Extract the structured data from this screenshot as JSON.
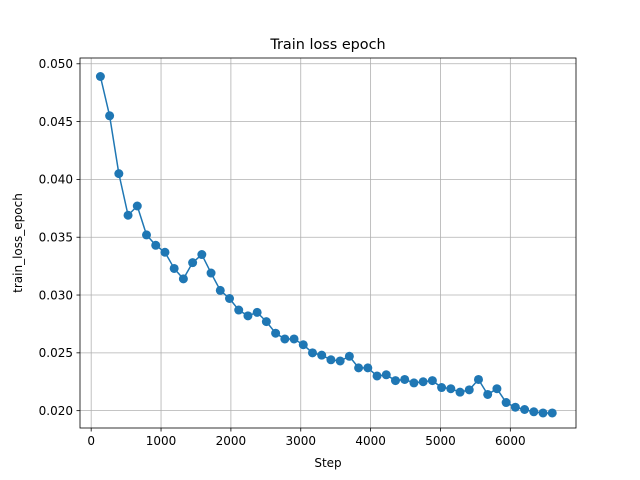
{
  "chart_data": {
    "type": "line",
    "title": "Train loss epoch",
    "xlabel": "Step",
    "ylabel": "train_loss_epoch",
    "xlim": [
      -160,
      6940
    ],
    "ylim": [
      0.0185,
      0.0505
    ],
    "xticks": [
      0,
      1000,
      2000,
      3000,
      4000,
      5000,
      6000
    ],
    "yticks": [
      0.02,
      0.025,
      0.03,
      0.035,
      0.04,
      0.045,
      0.05
    ],
    "ytick_labels": [
      "0.020",
      "0.025",
      "0.030",
      "0.035",
      "0.040",
      "0.045",
      "0.050"
    ],
    "grid": true,
    "color": "#1f77b4",
    "series": [
      {
        "x": [
          132,
          264,
          396,
          528,
          660,
          792,
          924,
          1056,
          1188,
          1320,
          1452,
          1584,
          1716,
          1848,
          1980,
          2112,
          2244,
          2376,
          2508,
          2640,
          2772,
          2904,
          3036,
          3168,
          3300,
          3432,
          3564,
          3696,
          3828,
          3960,
          4092,
          4224,
          4356,
          4488,
          4620,
          4752,
          4884,
          5016,
          5148,
          5280,
          5412,
          5544,
          5676,
          5808,
          5940,
          6072,
          6204,
          6336,
          6468,
          6600
        ],
        "y": [
          0.0489,
          0.0455,
          0.0405,
          0.0369,
          0.0377,
          0.0352,
          0.0343,
          0.0337,
          0.0323,
          0.0314,
          0.0328,
          0.0335,
          0.0319,
          0.0304,
          0.0297,
          0.0287,
          0.0282,
          0.0285,
          0.0277,
          0.0267,
          0.0262,
          0.0262,
          0.0257,
          0.025,
          0.0248,
          0.0244,
          0.0243,
          0.0247,
          0.0237,
          0.0237,
          0.023,
          0.0231,
          0.0226,
          0.0227,
          0.0224,
          0.0225,
          0.0226,
          0.022,
          0.0219,
          0.0216,
          0.0218,
          0.0227,
          0.0214,
          0.0219,
          0.0207,
          0.0203,
          0.0201,
          0.0199,
          0.0198,
          0.0198
        ]
      }
    ]
  }
}
